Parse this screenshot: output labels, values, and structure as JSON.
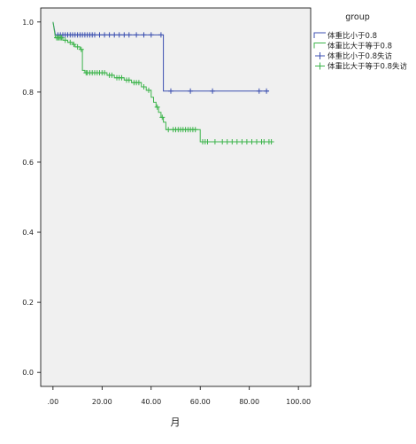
{
  "chart_data": {
    "type": "line",
    "subtype": "kaplan-meier survival curve",
    "title": "",
    "xlabel": "月",
    "ylabel": "",
    "xlim": [
      -5,
      105
    ],
    "ylim": [
      -0.04,
      1.04
    ],
    "x_ticks": [
      0,
      20,
      40,
      60,
      80,
      100
    ],
    "x_tick_labels": [
      ".00",
      "20.00",
      "40.00",
      "60.00",
      "80.00",
      "100.00"
    ],
    "y_ticks": [
      0.0,
      0.2,
      0.4,
      0.6,
      0.8,
      1.0
    ],
    "y_tick_labels": [
      "0.0",
      "0.2",
      "0.4",
      "0.6",
      "0.8",
      "1.0"
    ],
    "grid": false,
    "background": "#f0f0f0",
    "legend": {
      "title": "group",
      "placement": "right",
      "entries": [
        "体重比小于0.8",
        "体重比大于等于0.8",
        "体重比小于0.8失访",
        "体重比大于等于0.8失访"
      ]
    },
    "series": [
      {
        "name": "体重比小于0.8",
        "color": "#3b4fb0",
        "steps": [
          [
            0,
            1.0
          ],
          [
            1,
            0.963
          ],
          [
            45,
            0.963
          ],
          [
            45,
            0.803
          ],
          [
            88,
            0.803
          ]
        ],
        "censored_label": "体重比小于0.8失访",
        "censored": [
          [
            2,
            0.963
          ],
          [
            3,
            0.963
          ],
          [
            4,
            0.963
          ],
          [
            5,
            0.963
          ],
          [
            6,
            0.963
          ],
          [
            7,
            0.963
          ],
          [
            8,
            0.963
          ],
          [
            9,
            0.963
          ],
          [
            10,
            0.963
          ],
          [
            11,
            0.963
          ],
          [
            12,
            0.963
          ],
          [
            13,
            0.963
          ],
          [
            14,
            0.963
          ],
          [
            15,
            0.963
          ],
          [
            16,
            0.963
          ],
          [
            17,
            0.963
          ],
          [
            19,
            0.963
          ],
          [
            21,
            0.963
          ],
          [
            23,
            0.963
          ],
          [
            25,
            0.963
          ],
          [
            27,
            0.963
          ],
          [
            29,
            0.963
          ],
          [
            31,
            0.963
          ],
          [
            34,
            0.963
          ],
          [
            37,
            0.963
          ],
          [
            40,
            0.963
          ],
          [
            44,
            0.963
          ],
          [
            48,
            0.803
          ],
          [
            56,
            0.803
          ],
          [
            65,
            0.803
          ],
          [
            84,
            0.803
          ],
          [
            87,
            0.803
          ]
        ]
      },
      {
        "name": "体重比大于等于0.8",
        "color": "#3cb44b",
        "steps": [
          [
            0,
            1.0
          ],
          [
            1,
            0.955
          ],
          [
            4,
            0.955
          ],
          [
            4,
            0.948
          ],
          [
            6,
            0.948
          ],
          [
            6,
            0.942
          ],
          [
            8,
            0.942
          ],
          [
            8,
            0.936
          ],
          [
            9,
            0.936
          ],
          [
            9,
            0.929
          ],
          [
            11,
            0.929
          ],
          [
            11,
            0.922
          ],
          [
            12,
            0.922
          ],
          [
            12,
            0.862
          ],
          [
            13,
            0.862
          ],
          [
            13,
            0.855
          ],
          [
            22,
            0.855
          ],
          [
            22,
            0.848
          ],
          [
            25,
            0.848
          ],
          [
            25,
            0.841
          ],
          [
            29,
            0.841
          ],
          [
            29,
            0.834
          ],
          [
            32,
            0.834
          ],
          [
            32,
            0.827
          ],
          [
            36,
            0.827
          ],
          [
            36,
            0.815
          ],
          [
            38,
            0.815
          ],
          [
            38,
            0.805
          ],
          [
            40,
            0.805
          ],
          [
            40,
            0.785
          ],
          [
            41,
            0.785
          ],
          [
            41,
            0.771
          ],
          [
            42,
            0.771
          ],
          [
            42,
            0.757
          ],
          [
            43,
            0.757
          ],
          [
            43,
            0.742
          ],
          [
            44,
            0.742
          ],
          [
            44,
            0.728
          ],
          [
            45,
            0.728
          ],
          [
            45,
            0.714
          ],
          [
            46,
            0.714
          ],
          [
            46,
            0.693
          ],
          [
            60,
            0.693
          ],
          [
            60,
            0.658
          ],
          [
            90,
            0.658
          ]
        ],
        "censored_label": "体重比大于等于0.8失访",
        "censored": [
          [
            1.5,
            0.955
          ],
          [
            2,
            0.955
          ],
          [
            2.5,
            0.955
          ],
          [
            3,
            0.955
          ],
          [
            3.5,
            0.955
          ],
          [
            5,
            0.948
          ],
          [
            7,
            0.942
          ],
          [
            8.5,
            0.936
          ],
          [
            10,
            0.929
          ],
          [
            11.5,
            0.922
          ],
          [
            13.5,
            0.855
          ],
          [
            14,
            0.855
          ],
          [
            15,
            0.855
          ],
          [
            16,
            0.855
          ],
          [
            17,
            0.855
          ],
          [
            18,
            0.855
          ],
          [
            19,
            0.855
          ],
          [
            20,
            0.855
          ],
          [
            21,
            0.855
          ],
          [
            23,
            0.848
          ],
          [
            24,
            0.848
          ],
          [
            26,
            0.841
          ],
          [
            27,
            0.841
          ],
          [
            28,
            0.841
          ],
          [
            30,
            0.834
          ],
          [
            31,
            0.834
          ],
          [
            33,
            0.827
          ],
          [
            34,
            0.827
          ],
          [
            35,
            0.827
          ],
          [
            37,
            0.815
          ],
          [
            39,
            0.805
          ],
          [
            42.5,
            0.757
          ],
          [
            44.5,
            0.728
          ],
          [
            47,
            0.693
          ],
          [
            49,
            0.693
          ],
          [
            50,
            0.693
          ],
          [
            51,
            0.693
          ],
          [
            52,
            0.693
          ],
          [
            53,
            0.693
          ],
          [
            54,
            0.693
          ],
          [
            55,
            0.693
          ],
          [
            56,
            0.693
          ],
          [
            57,
            0.693
          ],
          [
            58,
            0.693
          ],
          [
            61,
            0.658
          ],
          [
            62,
            0.658
          ],
          [
            63,
            0.658
          ],
          [
            66,
            0.658
          ],
          [
            69,
            0.658
          ],
          [
            71,
            0.658
          ],
          [
            73,
            0.658
          ],
          [
            75,
            0.658
          ],
          [
            77,
            0.658
          ],
          [
            79,
            0.658
          ],
          [
            81,
            0.658
          ],
          [
            83,
            0.658
          ],
          [
            85,
            0.658
          ],
          [
            86,
            0.658
          ],
          [
            88,
            0.658
          ],
          [
            89,
            0.658
          ]
        ]
      }
    ]
  }
}
